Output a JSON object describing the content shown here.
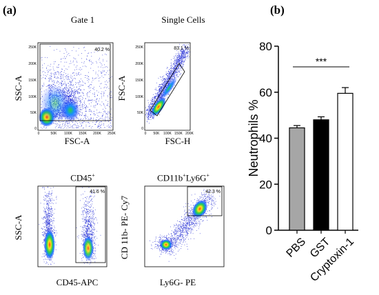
{
  "panel_a_label": "(a)",
  "panel_b_label": "(b)",
  "flow_panels": [
    {
      "title": "Gate 1",
      "pct": "40.2 %",
      "xlabel": "FSC-A",
      "ylabel": "SSC-A",
      "yticks": [
        "250K",
        "200K",
        "150K",
        "100K",
        "50K",
        "0"
      ],
      "xticks": [
        "0",
        "50K",
        "100K",
        "150K",
        "200K",
        "250K"
      ]
    },
    {
      "title": "Single Cells",
      "pct": "83.1 %",
      "xlabel": "FSC-H",
      "ylabel": "FSC-A",
      "yticks": [
        "250K",
        "200K",
        "150K",
        "100K",
        "50K",
        "0"
      ],
      "xticks": [
        "0",
        "50K",
        "100K",
        "150K",
        "200K"
      ]
    },
    {
      "title": "CD45",
      "title_sup": "+",
      "pct": "41.6 %",
      "xlabel": "CD45-APC",
      "ylabel": "SSC-A"
    },
    {
      "title": "CD11b",
      "title_sup": "+",
      "title2": "Ly6G",
      "title2_sup": "+",
      "pct": "42.3 %",
      "xlabel": "Ly6G- PE",
      "ylabel": "CD 11b- PE- Cy7"
    }
  ],
  "chart_data": {
    "type": "bar",
    "categories": [
      "PBS",
      "GST",
      "Cryptoxin-1"
    ],
    "values": [
      44.5,
      48,
      59.5
    ],
    "errors": [
      1,
      1.3,
      2.5
    ],
    "colors": [
      "#a6a6a6",
      "#000000",
      "#ffffff"
    ],
    "ylabel": "Neutrophils %",
    "ylim": [
      0,
      80
    ],
    "yticks": [
      0,
      20,
      40,
      60,
      80
    ],
    "significance": "***"
  }
}
